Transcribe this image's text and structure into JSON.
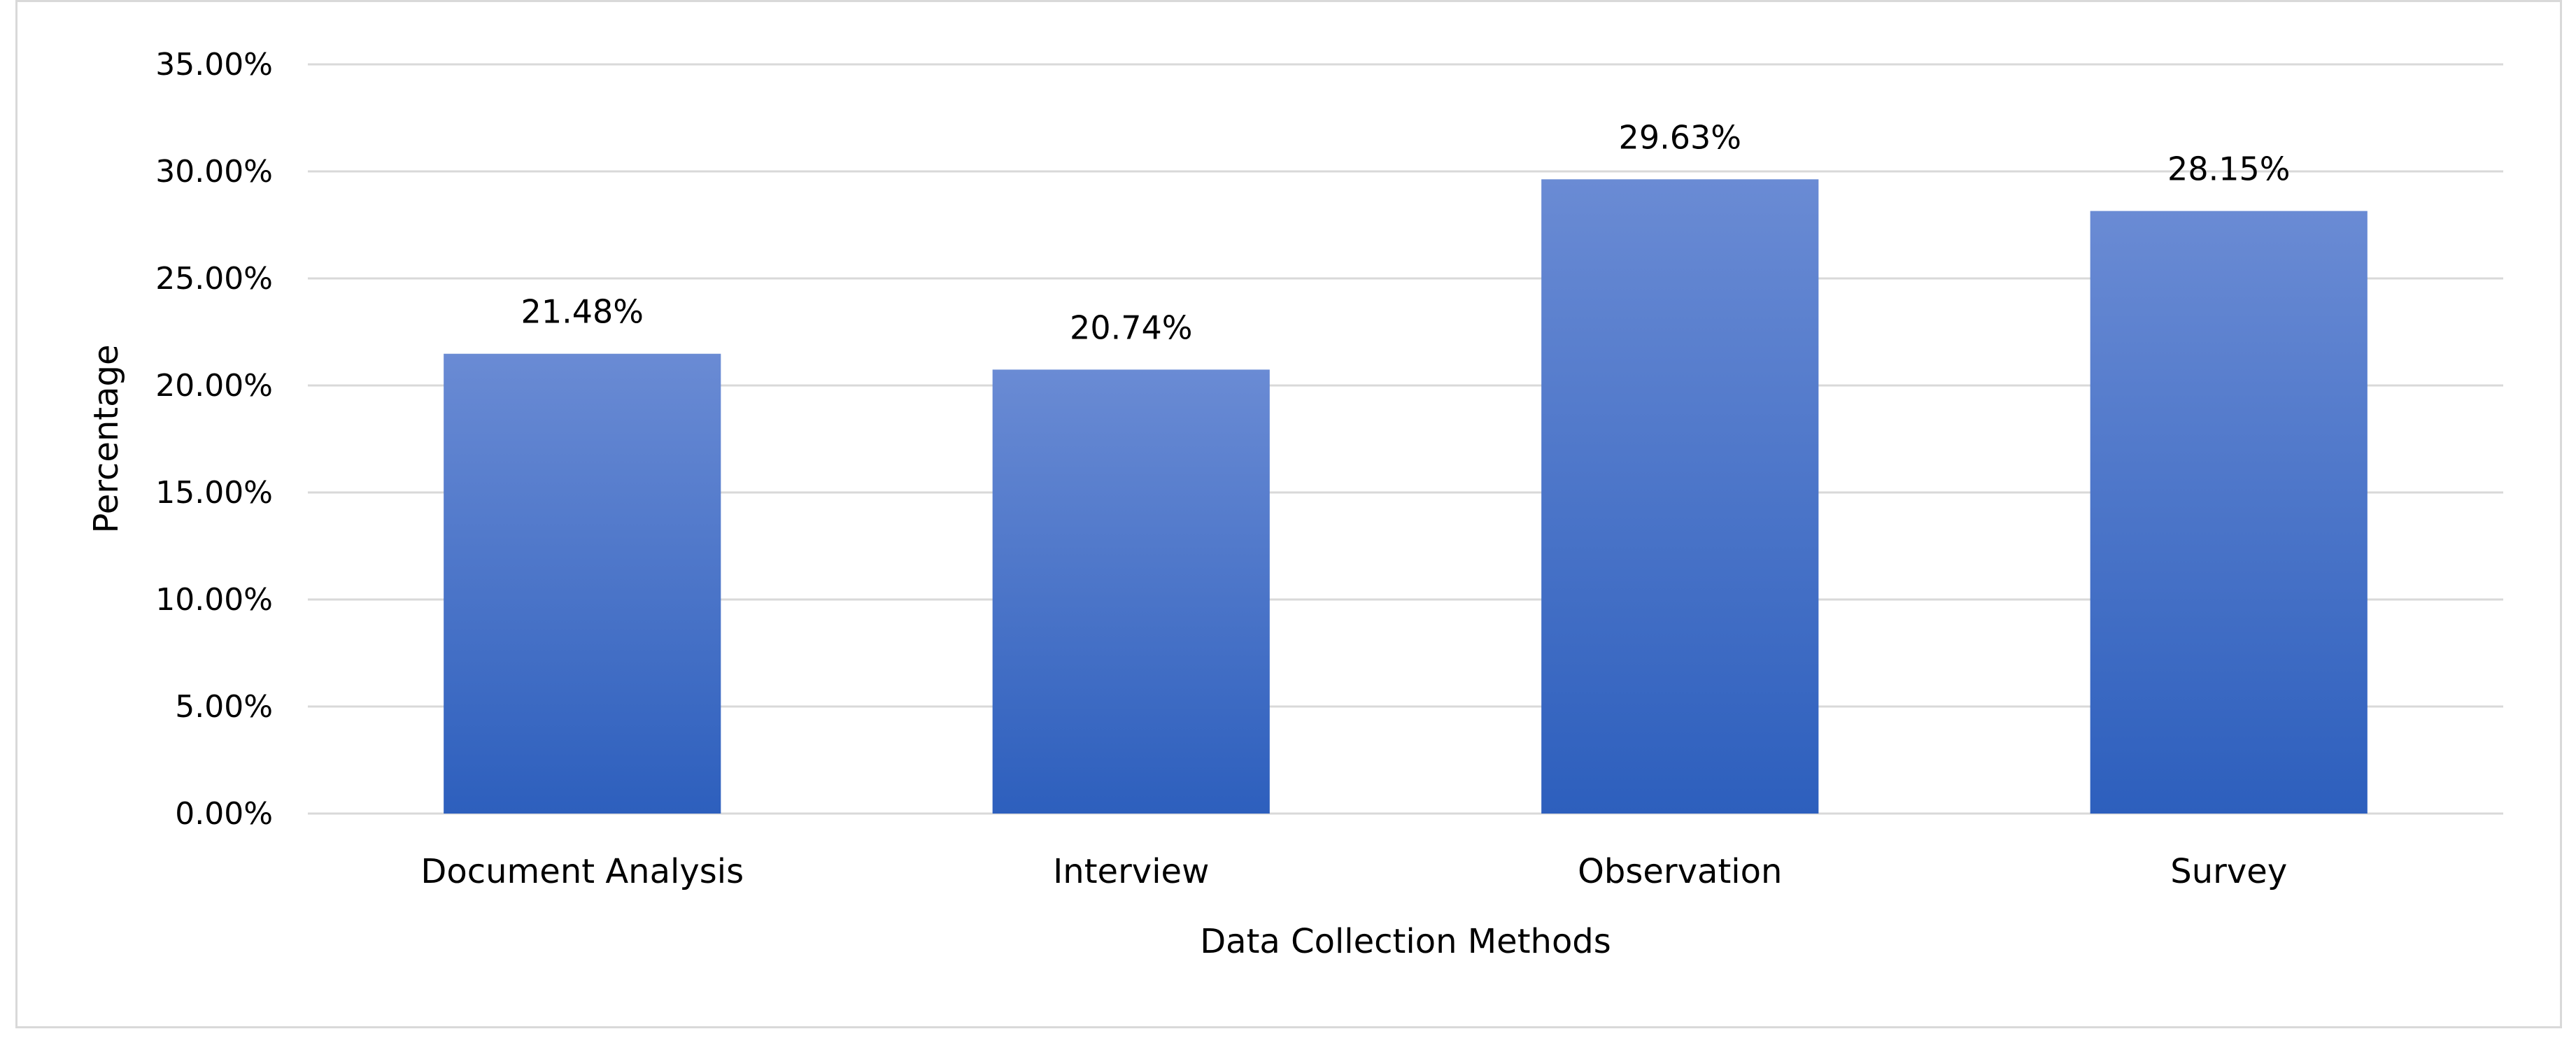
{
  "chart_data": {
    "type": "bar",
    "title": "",
    "xlabel": "Data Collection Methods",
    "ylabel": "Percentage",
    "categories": [
      "Document Analysis",
      "Interview",
      "Observation",
      "Survey"
    ],
    "values": [
      21.48,
      20.74,
      29.63,
      28.15
    ],
    "value_labels": [
      "21.48%",
      "20.74%",
      "29.63%",
      "28.15%"
    ],
    "ylim": [
      0,
      35
    ],
    "yticks": [
      0,
      5,
      10,
      15,
      20,
      25,
      30,
      35
    ],
    "ytick_labels": [
      "0.00%",
      "5.00%",
      "10.00%",
      "15.00%",
      "20.00%",
      "25.00%",
      "30.00%",
      "35.00%"
    ],
    "grid": true,
    "legend": "none",
    "colors": {
      "bar_top": "#6a8bd4",
      "bar_bottom": "#2d5fbd",
      "gridline": "#d9d9d9",
      "border": "#d9d9d9"
    }
  }
}
